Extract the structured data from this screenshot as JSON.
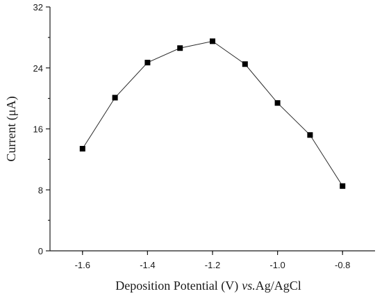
{
  "chart_data": {
    "type": "line",
    "title": "",
    "xlabel": "Deposition Potential (V)",
    "xlabel_suffix": "vs.",
    "xlabel_ref": "Ag/AgCl",
    "ylabel": "Current (μA)",
    "xlim": [
      -1.7,
      -0.7
    ],
    "ylim": [
      0,
      32
    ],
    "xticks": [
      -1.6,
      -1.4,
      -1.2,
      -1.0,
      -0.8
    ],
    "xtick_labels": [
      "-1.6",
      "-1.4",
      "-1.2",
      "-1.0",
      "-0.8"
    ],
    "yticks": [
      0,
      8,
      16,
      24,
      32
    ],
    "ytick_labels": [
      "0",
      "8",
      "16",
      "24",
      "32"
    ],
    "grid": false,
    "series": [
      {
        "marker": "square",
        "color": "#000000",
        "x": [
          -1.6,
          -1.5,
          -1.4,
          -1.3,
          -1.2,
          -1.1,
          -1.0,
          -0.9,
          -0.8
        ],
        "y": [
          13.4,
          20.1,
          24.7,
          26.6,
          27.5,
          24.5,
          19.4,
          15.2,
          8.5
        ]
      }
    ]
  }
}
